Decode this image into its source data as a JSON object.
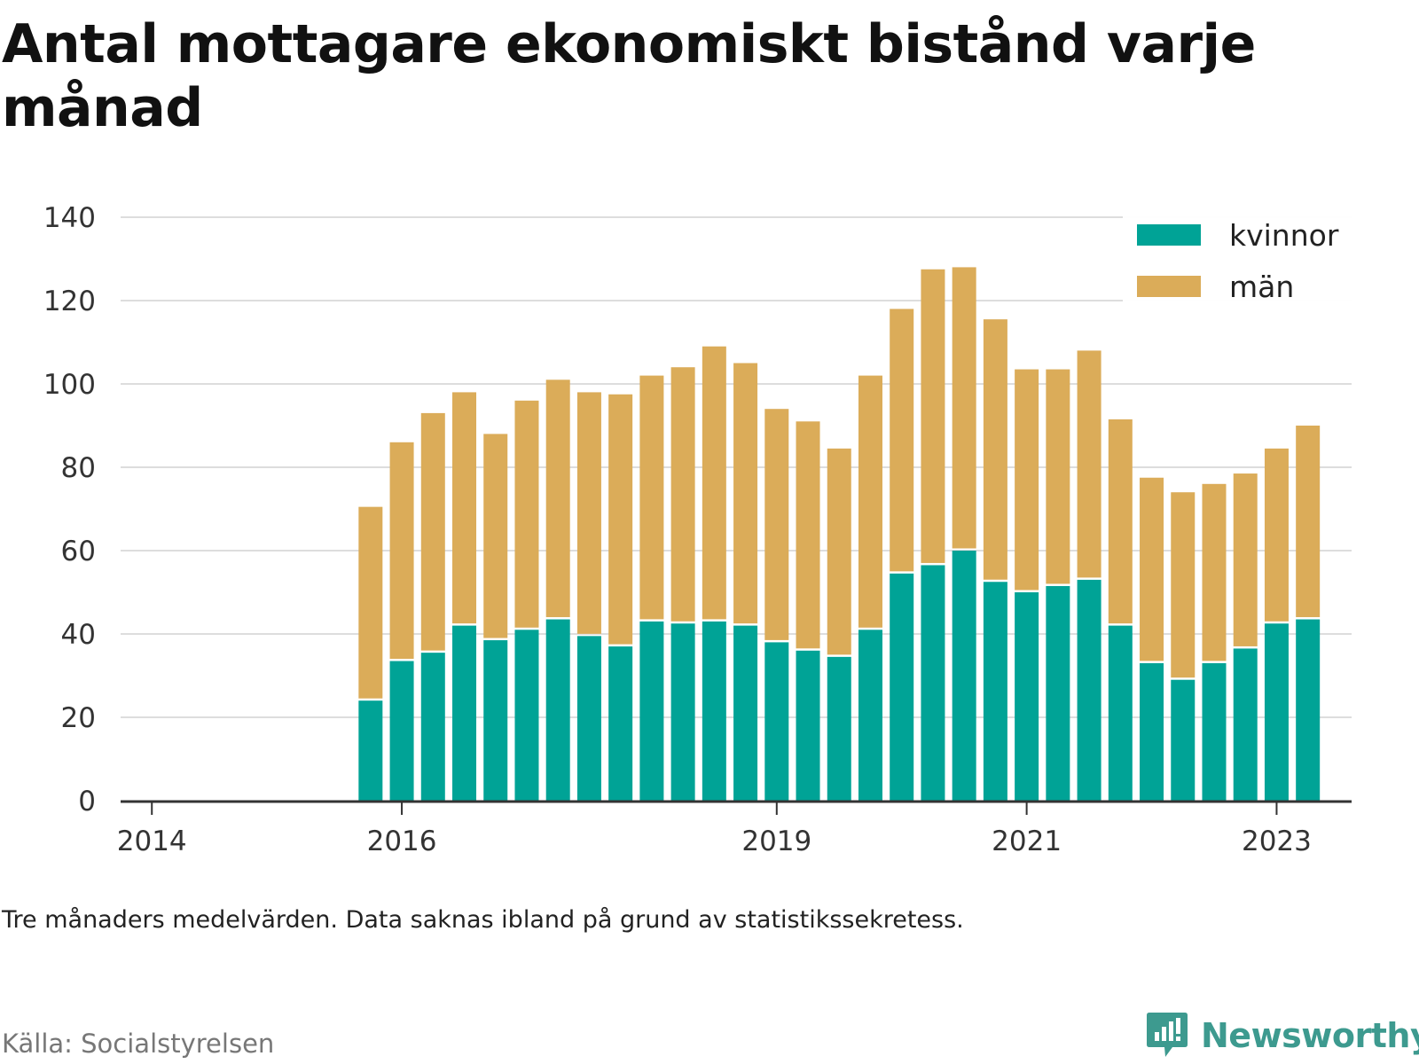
{
  "chart_data": {
    "type": "bar",
    "stacked": true,
    "title": "Antal mottagare ekonomiskt bistånd varje månad",
    "note": "Tre månaders medelvärden. Data saknas ibland på grund av statistikssekretess.",
    "source": "Källa: Socialstyrelsen",
    "ylim": [
      0,
      140
    ],
    "y_ticks": [
      0,
      20,
      40,
      60,
      80,
      100,
      120,
      140
    ],
    "x_range": [
      2013.75,
      2023.6
    ],
    "x_ticks": [
      {
        "value": 2014,
        "label": "2014"
      },
      {
        "value": 2016,
        "label": "2016"
      },
      {
        "value": 2019,
        "label": "2019"
      },
      {
        "value": 2021,
        "label": "2021"
      },
      {
        "value": 2023,
        "label": "2023"
      }
    ],
    "grid": true,
    "legend_position": "top-right",
    "x": [
      2015.75,
      2016.0,
      2016.25,
      2016.5,
      2016.75,
      2017.0,
      2017.25,
      2017.5,
      2017.75,
      2018.0,
      2018.25,
      2018.5,
      2018.75,
      2019.0,
      2019.25,
      2019.5,
      2019.75,
      2020.0,
      2020.25,
      2020.5,
      2020.75,
      2021.0,
      2021.25,
      2021.5,
      2021.75,
      2022.0,
      2022.25,
      2022.5,
      2022.75,
      2023.0,
      2023.25
    ],
    "series": [
      {
        "name": "kvinnor",
        "color": "#00a396",
        "values": [
          24,
          33.5,
          35.5,
          42,
          38.5,
          41,
          43.5,
          39.5,
          37,
          43,
          42.5,
          43,
          42,
          38,
          36,
          34.5,
          41,
          54.5,
          56.5,
          60,
          52.5,
          50,
          51.5,
          53,
          42,
          33,
          29,
          33,
          36.5,
          42.5,
          43.5
        ]
      },
      {
        "name": "män",
        "color": "#dbac59",
        "values": [
          46.5,
          52.5,
          57.5,
          56,
          49.5,
          55,
          57.5,
          58.5,
          60.5,
          59,
          61.5,
          66,
          63,
          56,
          55,
          50,
          61,
          63.5,
          71,
          68,
          63,
          53.5,
          52,
          55,
          49.5,
          44.5,
          45,
          43,
          42,
          42,
          46.5
        ]
      }
    ]
  },
  "brand": {
    "name": "Newsworthy",
    "icon": "newsworthy-logo-icon"
  }
}
